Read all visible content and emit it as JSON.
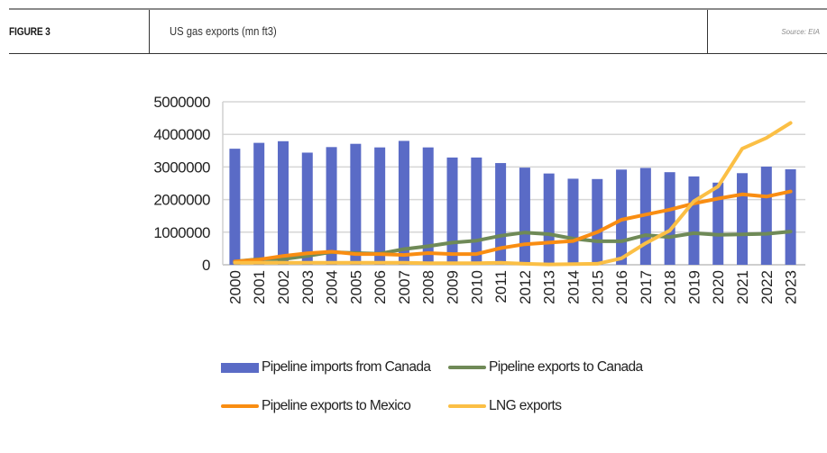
{
  "header": {
    "figure_label": "FIGURE 3",
    "title": "US gas exports (mn ft3)",
    "source": "Source: EIA"
  },
  "chart_data": {
    "type": "bar",
    "title": "US gas exports (mn ft3)",
    "xlabel": "",
    "ylabel": "",
    "ylim": [
      0,
      5000000
    ],
    "yticks": [
      "0",
      "1000000",
      "2000000",
      "3000000",
      "4000000",
      "5000000"
    ],
    "ytick_values": [
      0,
      1000000,
      2000000,
      3000000,
      4000000,
      5000000
    ],
    "grid": true,
    "legend_position": "bottom",
    "categories": [
      "2000",
      "2001",
      "2002",
      "2003",
      "2004",
      "2005",
      "2006",
      "2007",
      "2008",
      "2009",
      "2010",
      "2011",
      "2012",
      "2013",
      "2014",
      "2015",
      "2016",
      "2017",
      "2018",
      "2019",
      "2020",
      "2021",
      "2022",
      "2023"
    ],
    "series": [
      {
        "name": "Pipeline imports from Canada",
        "type": "bar",
        "color": "#5A6BC6",
        "values": [
          3560000,
          3740000,
          3790000,
          3440000,
          3610000,
          3710000,
          3600000,
          3800000,
          3600000,
          3290000,
          3290000,
          3120000,
          2980000,
          2800000,
          2640000,
          2630000,
          2920000,
          2970000,
          2840000,
          2710000,
          2520000,
          2810000,
          3010000,
          2930000
        ]
      },
      {
        "name": "Pipeline exports to Canada",
        "type": "line",
        "color": "#6F8A57",
        "values": [
          100000,
          170000,
          170000,
          270000,
          390000,
          360000,
          340000,
          480000,
          570000,
          680000,
          740000,
          890000,
          990000,
          940000,
          800000,
          720000,
          720000,
          910000,
          850000,
          970000,
          920000,
          930000,
          950000,
          1020000
        ]
      },
      {
        "name": "Pipeline exports to Mexico",
        "type": "line",
        "color": "#F98D12",
        "values": [
          100000,
          160000,
          270000,
          350000,
          400000,
          330000,
          330000,
          300000,
          360000,
          330000,
          330000,
          510000,
          630000,
          680000,
          730000,
          1000000,
          1380000,
          1540000,
          1690000,
          1880000,
          2030000,
          2160000,
          2090000,
          2250000
        ]
      },
      {
        "name": "LNG exports",
        "type": "line",
        "color": "#FBBF45",
        "values": [
          60000,
          60000,
          60000,
          60000,
          60000,
          60000,
          60000,
          60000,
          50000,
          50000,
          50000,
          60000,
          30000,
          10000,
          20000,
          30000,
          200000,
          660000,
          1050000,
          1950000,
          2400000,
          3560000,
          3890000,
          4350000
        ]
      }
    ]
  }
}
